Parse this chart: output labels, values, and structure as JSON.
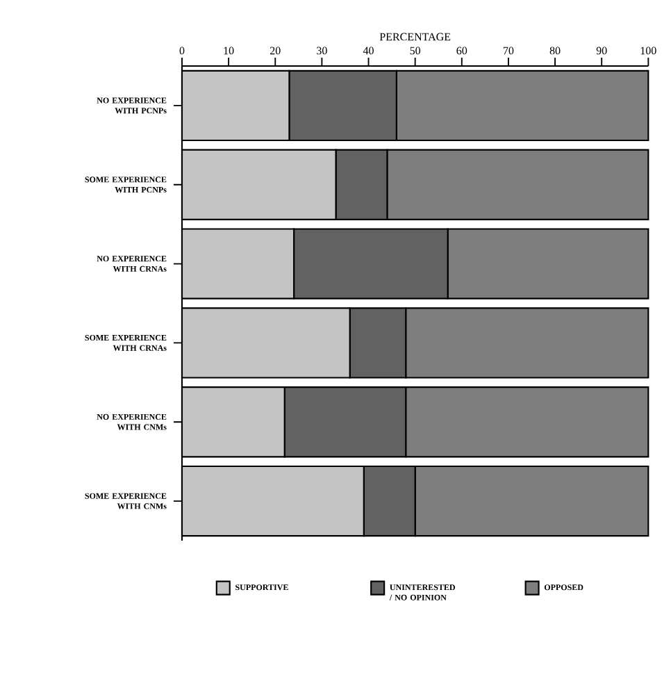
{
  "chart_data": {
    "type": "bar",
    "orientation": "horizontal",
    "stacked": true,
    "xlabel": "PERCENTAGE",
    "categories": [
      "NO EXPERIENCE WITH PCNPs",
      "SOME EXPERIENCE WITH PCNPs",
      "NO EXPERIENCE WITH CRNAs",
      "SOME EXPERIENCE WITH CRNAs",
      "NO EXPERIENCE WITH CNMs",
      "SOME EXPERIENCE WITH CNMs"
    ],
    "series": [
      {
        "name": "SUPPORTIVE",
        "color": "#c4c4c4",
        "values": [
          23,
          33,
          24,
          36,
          22,
          39
        ]
      },
      {
        "name": "UNINTERESTED / NO OPINION",
        "color": "#626262",
        "values": [
          23,
          11,
          33,
          12,
          26,
          11
        ]
      },
      {
        "name": "OPPOSED",
        "color": "#7e7e7e",
        "values": [
          54,
          56,
          43,
          52,
          52,
          50
        ]
      }
    ],
    "xlim": [
      0,
      100
    ],
    "xticks": [
      0,
      10,
      20,
      30,
      40,
      50,
      60,
      70,
      80,
      90,
      100
    ],
    "grid": false,
    "legend": "bottom"
  }
}
